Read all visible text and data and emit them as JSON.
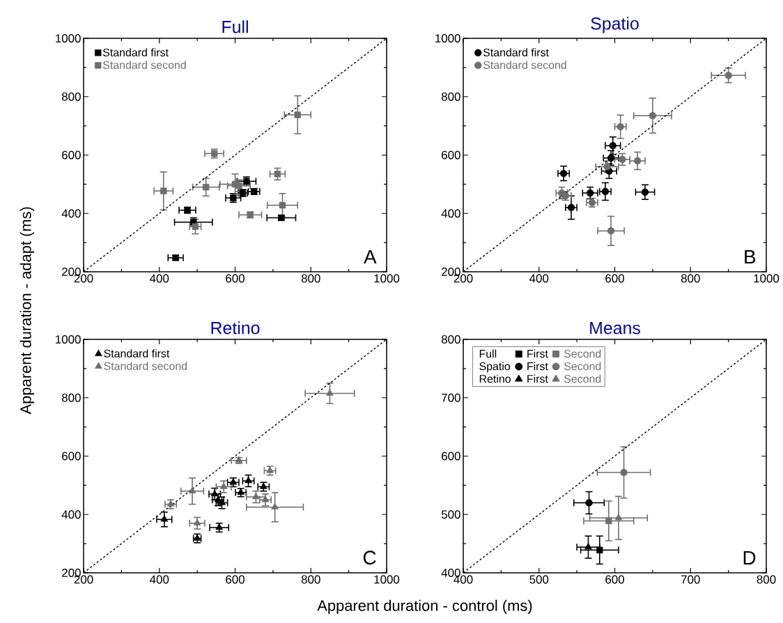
{
  "chart_data": [
    {
      "type": "scatter",
      "title": "Full",
      "ylabel": "Apparent duration - adapt (ms)",
      "xlim": [
        200,
        1000
      ],
      "ylim": [
        200,
        1000
      ],
      "xticks": [
        200,
        400,
        600,
        800,
        1000
      ],
      "yticks": [
        200,
        400,
        600,
        800,
        1000
      ],
      "legend": "top left",
      "annotations": [
        "A"
      ],
      "series": [
        {
          "name": "Standard first",
          "color": "#000000",
          "marker": "square",
          "x": [
            443,
            474,
            490,
            595,
            630,
            650,
            620,
            722
          ],
          "values": [
            248,
            411,
            370,
            453,
            510,
            475,
            470,
            385
          ],
          "xerrors": [
            20,
            22,
            50,
            20,
            25,
            15,
            12,
            38
          ],
          "errors": [
            8,
            10,
            15,
            15,
            15,
            10,
            12,
            8
          ]
        },
        {
          "name": "Standard second",
          "color": "#6e6e6e",
          "marker": "square",
          "x": [
            411,
            545,
            523,
            495,
            600,
            610,
            640,
            712,
            725,
            765
          ],
          "values": [
            477,
            605,
            490,
            355,
            500,
            495,
            395,
            535,
            428,
            738
          ],
          "xerrors": [
            25,
            25,
            35,
            15,
            40,
            30,
            30,
            20,
            40,
            35
          ],
          "errors": [
            65,
            15,
            30,
            25,
            35,
            20,
            10,
            20,
            40,
            65
          ]
        },
        {
          "type": "line",
          "color": "#000000",
          "marker": "none",
          "line_style": "dashed",
          "x": [
            200,
            1000
          ],
          "values": [
            200,
            1000
          ]
        }
      ]
    },
    {
      "type": "scatter",
      "title": "Spatio",
      "xlim": [
        200,
        1000
      ],
      "ylim": [
        200,
        1000
      ],
      "xticks": [
        200,
        400,
        600,
        800,
        1000
      ],
      "yticks": [
        200,
        400,
        600,
        800,
        1000
      ],
      "legend": "top left",
      "annotations": [
        "B"
      ],
      "series": [
        {
          "name": "Standard first",
          "color": "#000000",
          "marker": "circle",
          "x": [
            465,
            485,
            535,
            575,
            595,
            590,
            585,
            680
          ],
          "values": [
            537,
            420,
            470,
            475,
            632,
            590,
            545,
            473
          ],
          "xerrors": [
            15,
            15,
            20,
            15,
            20,
            20,
            20,
            25
          ],
          "errors": [
            25,
            40,
            20,
            30,
            30,
            25,
            25,
            25
          ]
        },
        {
          "name": "Standard second",
          "color": "#6e6e6e",
          "marker": "circle",
          "x": [
            460,
            470,
            540,
            590,
            615,
            620,
            660,
            700,
            900,
            580
          ],
          "values": [
            470,
            460,
            437,
            340,
            697,
            585,
            580,
            735,
            873,
            560
          ],
          "xerrors": [
            15,
            15,
            15,
            35,
            15,
            20,
            20,
            50,
            45,
            30
          ],
          "errors": [
            20,
            15,
            15,
            50,
            40,
            20,
            30,
            60,
            25,
            20
          ]
        },
        {
          "type": "line",
          "color": "#000000",
          "marker": "none",
          "line_style": "dashed",
          "x": [
            200,
            1000
          ],
          "values": [
            200,
            1000
          ]
        }
      ]
    },
    {
      "type": "scatter",
      "title": "Retino",
      "xlabel": "Apparent duration - control (ms)",
      "xlim": [
        200,
        1000
      ],
      "ylim": [
        200,
        1000
      ],
      "xticks": [
        200,
        400,
        600,
        800,
        1000
      ],
      "yticks": [
        200,
        400,
        600,
        800,
        1000
      ],
      "legend": "top left",
      "annotations": [
        "C"
      ],
      "series": [
        {
          "name": "Standard first",
          "color": "#000000",
          "marker": "triangle",
          "x": [
            413,
            500,
            558,
            546,
            555,
            565,
            595,
            635,
            615,
            675
          ],
          "values": [
            383,
            318,
            355,
            470,
            450,
            440,
            510,
            515,
            475,
            495
          ],
          "xerrors": [
            20,
            10,
            25,
            15,
            15,
            15,
            15,
            15,
            14,
            15
          ],
          "errors": [
            25,
            15,
            15,
            20,
            20,
            20,
            15,
            20,
            14,
            15
          ]
        },
        {
          "name": "Standard second",
          "color": "#6e6e6e",
          "marker": "triangle",
          "x": [
            430,
            487,
            500,
            610,
            692,
            655,
            680,
            705,
            570,
            850
          ],
          "values": [
            435,
            480,
            370,
            585,
            550,
            460,
            450,
            425,
            495,
            815
          ],
          "xerrors": [
            15,
            30,
            20,
            20,
            15,
            25,
            15,
            75,
            20,
            65
          ],
          "errors": [
            15,
            45,
            20,
            10,
            15,
            20,
            20,
            50,
            20,
            35
          ]
        },
        {
          "type": "line",
          "color": "#000000",
          "marker": "none",
          "line_style": "dashed",
          "x": [
            200,
            1000
          ],
          "values": [
            200,
            1000
          ]
        }
      ]
    },
    {
      "type": "scatter",
      "title": "Means",
      "xlim": [
        400,
        800
      ],
      "ylim": [
        400,
        800
      ],
      "xticks": [
        400,
        500,
        600,
        700,
        800
      ],
      "yticks": [
        400,
        500,
        600,
        700,
        800
      ],
      "legend": "top left",
      "annotations": [
        "D",
        "Full",
        "Spatio",
        "Retino"
      ],
      "series": [
        {
          "name": "First",
          "color": "#000000",
          "marker": "square",
          "x": [
            580
          ],
          "values": [
            439
          ],
          "xerrors": [
            25
          ],
          "errors": [
            24
          ]
        },
        {
          "name": "Second",
          "color": "#6e6e6e",
          "marker": "square",
          "x": [
            592
          ],
          "values": [
            489
          ],
          "xerrors": [
            33
          ],
          "errors": [
            34
          ]
        },
        {
          "name": "First",
          "color": "#000000",
          "marker": "circle",
          "x": [
            566
          ],
          "values": [
            520
          ],
          "xerrors": [
            20
          ],
          "errors": [
            19
          ]
        },
        {
          "name": "Second",
          "color": "#6e6e6e",
          "marker": "circle",
          "x": [
            612
          ],
          "values": [
            572
          ],
          "xerrors": [
            35
          ],
          "errors": [
            44
          ]
        },
        {
          "name": "First",
          "color": "#000000",
          "marker": "triangle",
          "x": [
            565
          ],
          "values": [
            444
          ],
          "xerrors": [
            15
          ],
          "errors": [
            19
          ]
        },
        {
          "name": "Second",
          "color": "#6e6e6e",
          "marker": "triangle",
          "x": [
            605
          ],
          "values": [
            494
          ],
          "xerrors": [
            38
          ],
          "errors": [
            37
          ]
        },
        {
          "type": "line",
          "color": "#000000",
          "marker": "none",
          "line_style": "dashed",
          "x": [
            400,
            800
          ],
          "values": [
            400,
            800
          ]
        }
      ]
    }
  ]
}
